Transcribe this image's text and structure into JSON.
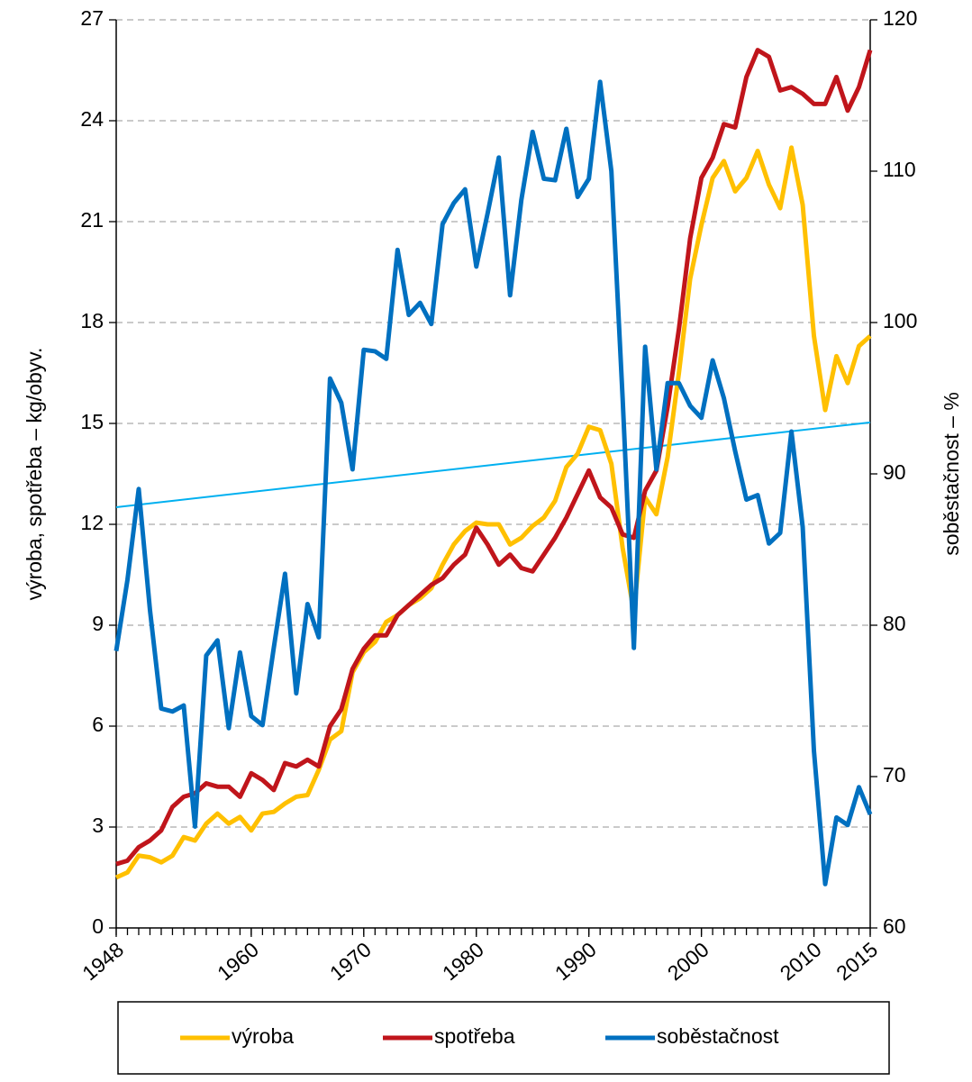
{
  "chart_data": {
    "type": "line",
    "y_label": "výroba, spotřeba – kg/obyv.",
    "y2_label": "soběstačnost – %",
    "x": [
      1948,
      1949,
      1950,
      1951,
      1952,
      1953,
      1954,
      1955,
      1956,
      1957,
      1958,
      1959,
      1960,
      1961,
      1962,
      1963,
      1964,
      1965,
      1966,
      1967,
      1968,
      1969,
      1970,
      1971,
      1972,
      1973,
      1974,
      1975,
      1976,
      1977,
      1978,
      1979,
      1980,
      1981,
      1982,
      1983,
      1984,
      1985,
      1986,
      1987,
      1988,
      1989,
      1990,
      1991,
      1992,
      1993,
      1994,
      1995,
      1996,
      1997,
      1998,
      1999,
      2000,
      2001,
      2002,
      2003,
      2004,
      2005,
      2006,
      2007,
      2008,
      2009,
      2010,
      2011,
      2012,
      2013,
      2014,
      2015
    ],
    "xlim": [
      1948,
      2015
    ],
    "xticks": [
      1948,
      1960,
      1970,
      1980,
      1990,
      2000,
      2010,
      2015
    ],
    "ylim": [
      0,
      27
    ],
    "yticks": [
      0,
      3,
      6,
      9,
      12,
      15,
      18,
      21,
      24,
      27
    ],
    "y2lim": [
      60,
      120
    ],
    "y2ticks": [
      60,
      70,
      80,
      90,
      100,
      110,
      120
    ],
    "grid": true,
    "series": [
      {
        "name": "výroba",
        "color": "#FFC000",
        "values": [
          1.5,
          1.65,
          2.15,
          2.1,
          1.95,
          2.15,
          2.7,
          2.6,
          3.1,
          3.4,
          3.1,
          3.3,
          2.9,
          3.4,
          3.45,
          3.7,
          3.9,
          3.95,
          4.7,
          5.6,
          5.85,
          7.6,
          8.2,
          8.5,
          9.1,
          9.3,
          9.6,
          9.8,
          10.1,
          10.8,
          11.4,
          11.8,
          12.05,
          12.0,
          12.0,
          11.4,
          11.6,
          11.95,
          12.2,
          12.7,
          13.7,
          14.1,
          14.9,
          14.8,
          13.8,
          11.3,
          9.4,
          12.8,
          12.3,
          14.0,
          16.5,
          19.3,
          20.9,
          22.3,
          22.8,
          21.9,
          22.3,
          23.1,
          22.1,
          21.4,
          23.2,
          21.5,
          17.6,
          15.4,
          17.0,
          16.2,
          17.3,
          17.6
        ]
      },
      {
        "name": "spotřeba",
        "color": "#C0151B",
        "values": [
          1.9,
          2.0,
          2.4,
          2.6,
          2.9,
          3.6,
          3.9,
          4.0,
          4.3,
          4.2,
          4.2,
          3.9,
          4.6,
          4.4,
          4.1,
          4.9,
          4.8,
          5.0,
          4.8,
          6.0,
          6.5,
          7.7,
          8.3,
          8.7,
          8.7,
          9.3,
          9.6,
          9.9,
          10.2,
          10.4,
          10.8,
          11.1,
          11.9,
          11.4,
          10.8,
          11.1,
          10.7,
          10.6,
          11.1,
          11.6,
          12.2,
          12.9,
          13.6,
          12.8,
          12.5,
          11.7,
          11.6,
          13.0,
          13.6,
          15.5,
          17.8,
          20.5,
          22.3,
          22.9,
          23.9,
          23.8,
          25.3,
          26.1,
          25.9,
          24.9,
          25.0,
          24.8,
          24.5,
          24.5,
          25.3,
          24.3,
          25.0,
          26.1
        ]
      },
      {
        "name": "soběstačnost",
        "color": "#0070C0",
        "axis": "y2",
        "values": [
          78.3,
          83,
          89,
          81,
          74.5,
          74.3,
          74.7,
          66.7,
          78,
          79,
          73.2,
          78.2,
          74,
          73.4,
          78.5,
          83.4,
          75.5,
          81.4,
          79.2,
          96.3,
          94.7,
          90.3,
          98.2,
          98.1,
          97.6,
          104.8,
          100.5,
          101.3,
          99.9,
          106.5,
          107.9,
          108.8,
          103.7,
          107.2,
          110.9,
          101.8,
          108.1,
          112.6,
          109.5,
          109.4,
          112.8,
          108.3,
          109.5,
          115.9,
          110,
          95,
          78.5,
          98.4,
          90.3,
          96,
          96,
          94.5,
          93.7,
          97.5,
          95,
          91.5,
          88.3,
          88.6,
          85.4,
          86.1,
          92.8,
          86.5,
          71.7,
          62.9,
          67.3,
          66.8,
          69.3,
          67.5
        ]
      }
    ],
    "trendline": {
      "color": "#00B0F0",
      "axis": "y2",
      "x": [
        1948,
        2015
      ],
      "values": [
        87.8,
        93.4
      ]
    }
  }
}
